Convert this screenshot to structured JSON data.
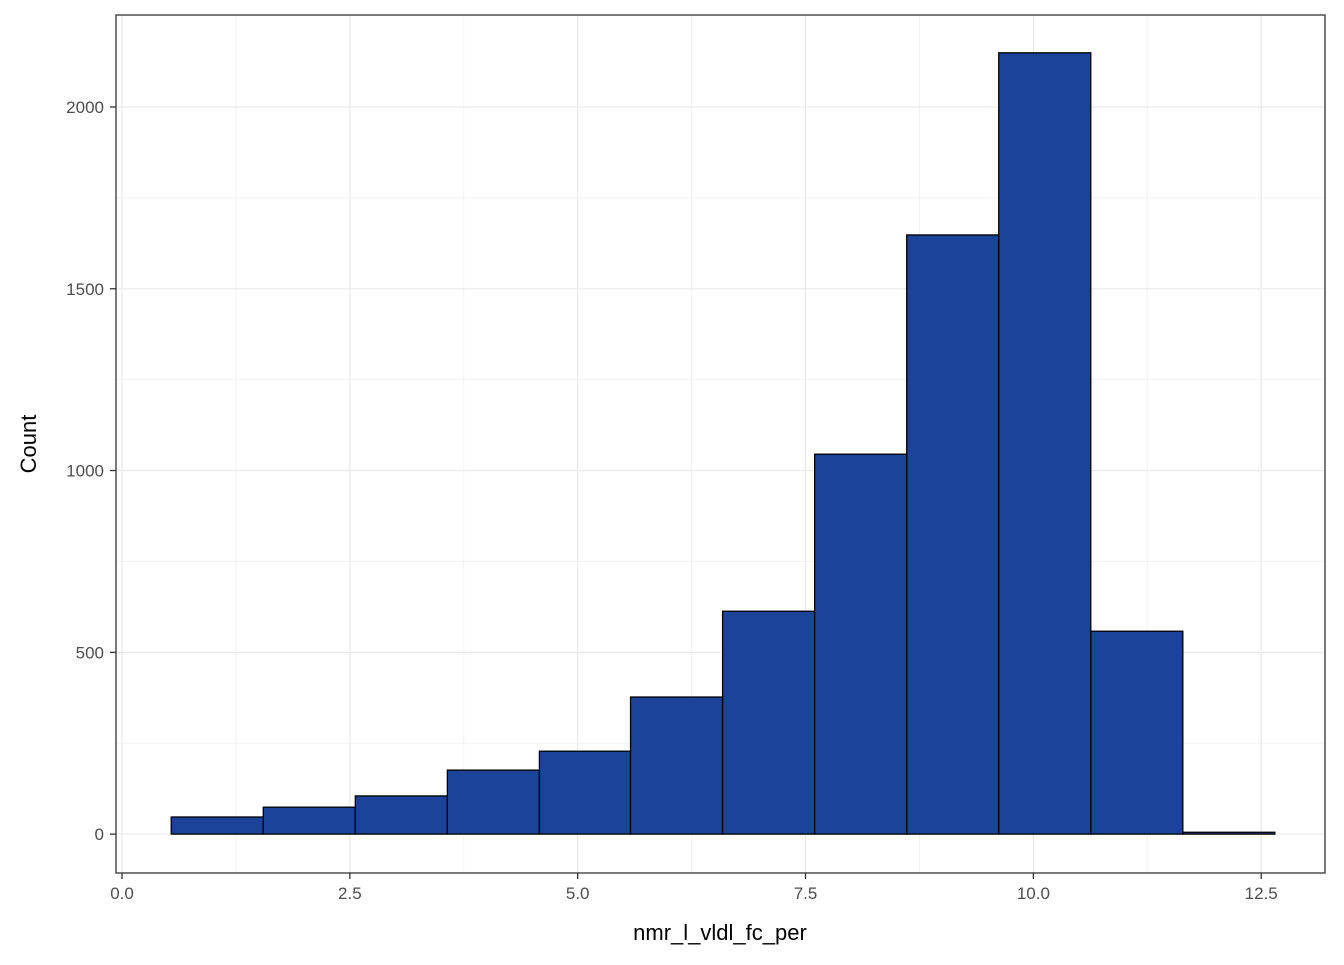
{
  "chart_data": {
    "type": "histogram",
    "x_label": "nmr_l_vldl_fc_per",
    "y_label": "Count",
    "bins": [
      0.54,
      1.55,
      2.56,
      3.57,
      4.58,
      5.58,
      6.59,
      7.6,
      8.61,
      9.62,
      10.63,
      11.64,
      12.65
    ],
    "counts": [
      47,
      74,
      105,
      176,
      228,
      377,
      613,
      1045,
      1648,
      2149,
      558,
      5
    ],
    "color": "#1a4399",
    "edge_color": "#000000",
    "xlim": [
      -0.066,
      13.2
    ],
    "ylim": [
      -107,
      2253
    ],
    "xticks": [
      {
        "value": 0,
        "label": "0.0"
      },
      2.5,
      {
        "value": 5,
        "label": "5.0"
      },
      7.5,
      {
        "value": 10,
        "label": "10.0"
      },
      12.5
    ],
    "yticks": [
      0,
      500,
      1000,
      1500,
      2000
    ],
    "grid": true,
    "minor_grid": true
  }
}
